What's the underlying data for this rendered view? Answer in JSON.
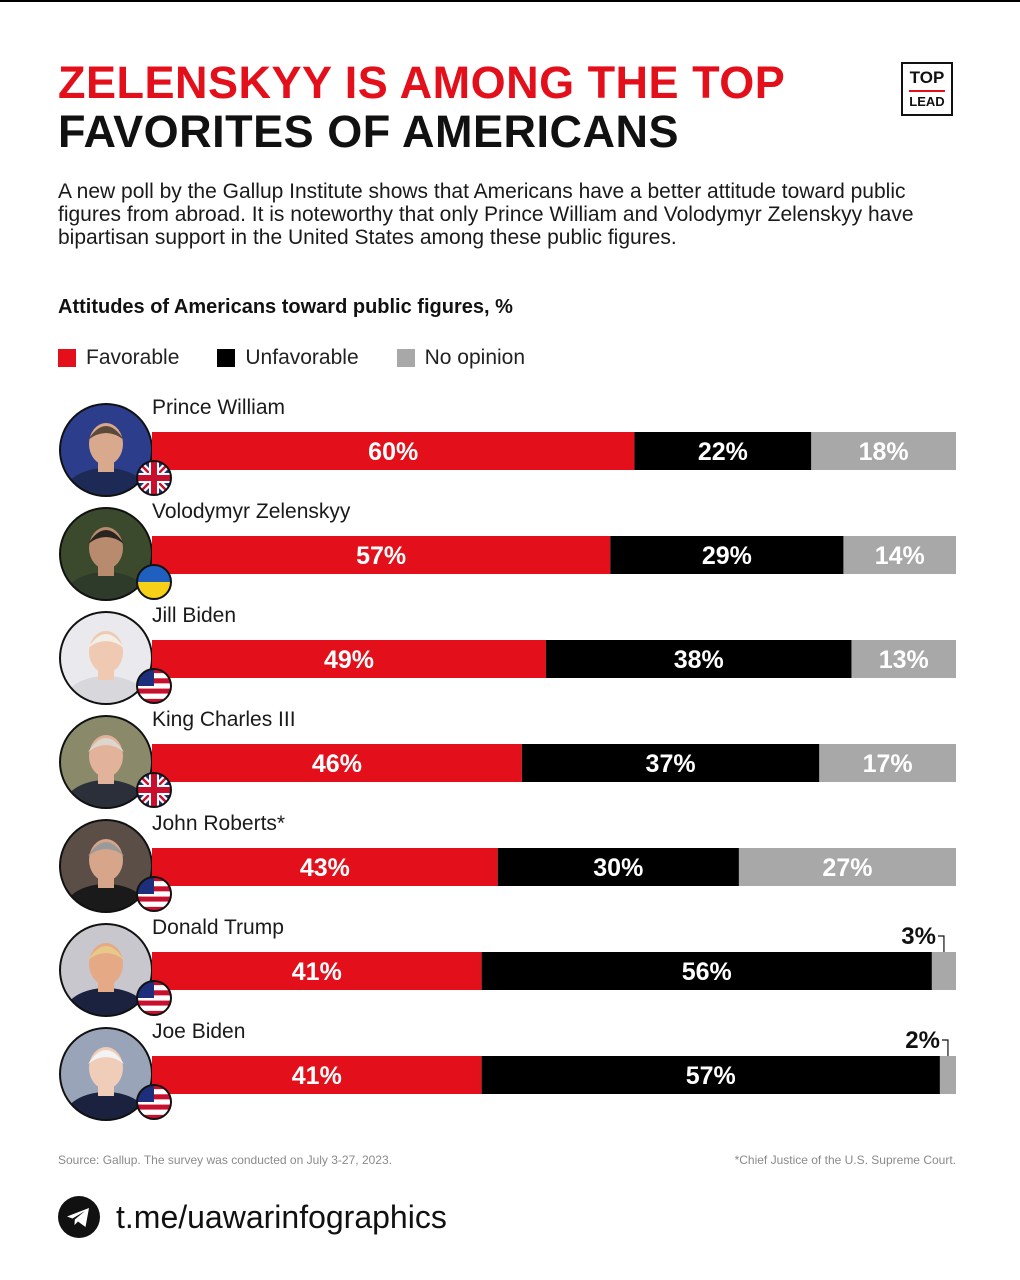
{
  "header": {
    "title_line1": "ZELENSKYY IS AMONG THE TOP",
    "title_line2": "FAVORITES OF AMERICANS",
    "logo_top": "TOP",
    "logo_bottom": "LEAD"
  },
  "lede": "A new poll by the Gallup Institute shows that Americans have a better attitude toward public figures from abroad. It is noteworthy that only Prince William and Volodymyr Zelenskyy have bipartisan support in the United States among these public figures.",
  "chart_data": {
    "type": "bar",
    "orientation": "horizontal",
    "stacked": true,
    "title": "Attitudes of Americans toward public figures, %",
    "categories": [
      "Prince William",
      "Volodymyr Zelenskyy",
      "Jill Biden",
      "King Charles III",
      "John Roberts*",
      "Donald Trump",
      "Joe Biden"
    ],
    "flags": [
      "uk",
      "ukraine",
      "usa",
      "uk",
      "usa",
      "usa",
      "usa"
    ],
    "series": [
      {
        "name": "Favorable",
        "color": "#e3101b",
        "values": [
          60,
          57,
          49,
          46,
          43,
          41,
          41
        ],
        "labels": [
          "60%",
          "57%",
          "49%",
          "46%",
          "43%",
          "41%",
          "41%"
        ]
      },
      {
        "name": "Unfavorable",
        "color": "#000000",
        "values": [
          22,
          29,
          38,
          37,
          30,
          56,
          57
        ],
        "labels": [
          "22%",
          "29%",
          "38%",
          "37%",
          "30%",
          "56%",
          "57%"
        ]
      },
      {
        "name": "No opinion",
        "color": "#a8a8a8",
        "values": [
          18,
          14,
          13,
          17,
          27,
          3,
          2
        ],
        "labels": [
          "18%",
          "14%",
          "13%",
          "17%",
          "27%",
          "3%",
          "2%"
        ]
      }
    ],
    "xlim": [
      0,
      100
    ],
    "legend_position": "top-left",
    "grid": false
  },
  "source": "Source: Gallup. The survey was conducted on July 3-27, 2023.",
  "footnote": "*Chief Justice of the U.S. Supreme Court.",
  "telegram": {
    "icon": "telegram-icon",
    "text": "t.me/uawarinfographics"
  }
}
